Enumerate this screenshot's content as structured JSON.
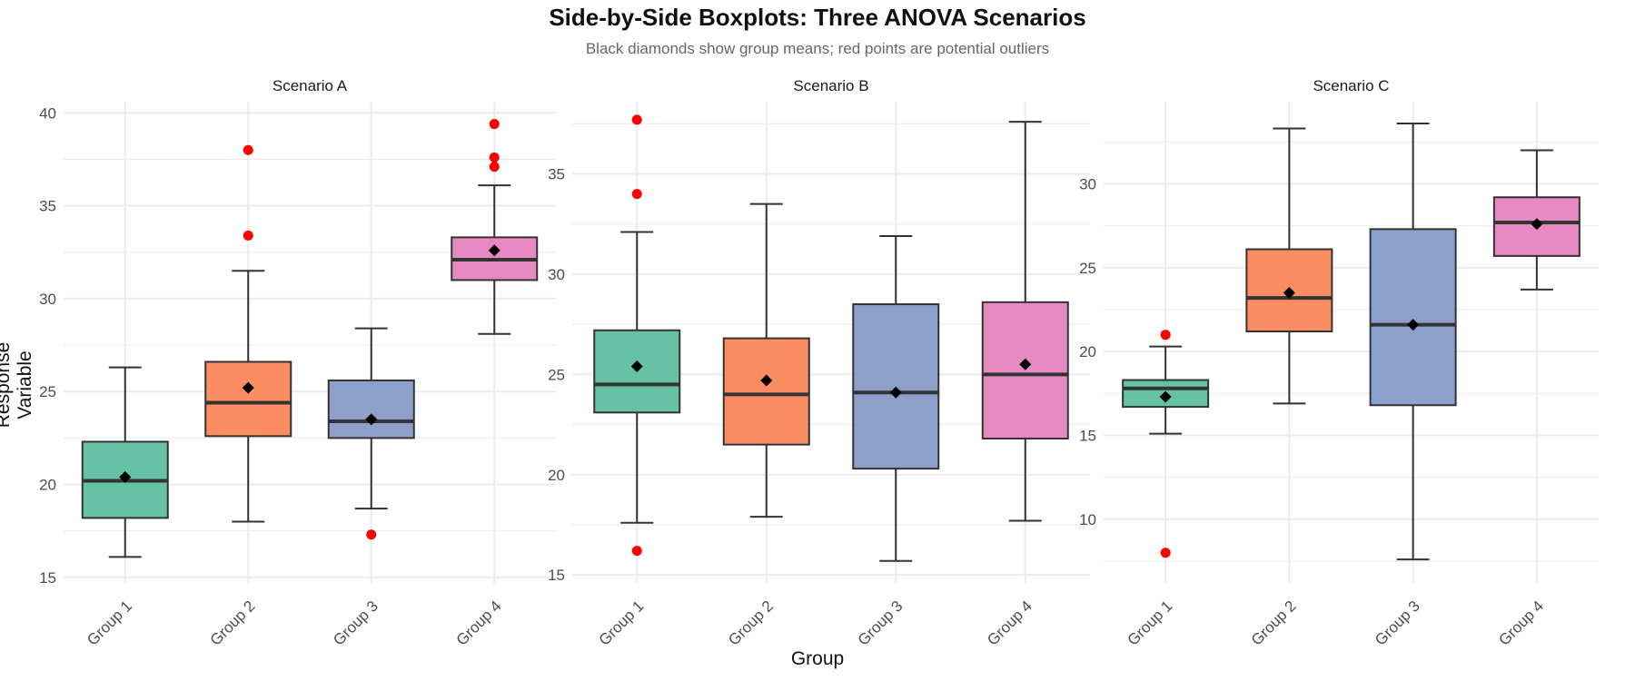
{
  "title": "Side-by-Side Boxplots: Three ANOVA Scenarios",
  "subtitle": "Black diamonds show group means; red points are potential outliers",
  "colors": {
    "Group 1": "#66c2a5",
    "Group 2": "#fc8d62",
    "Group 3": "#8da0cb",
    "Group 4": "#e78ac3",
    "outlier": "#ff0000",
    "mean": "#000000",
    "grid": "#ebebeb"
  },
  "chart_data": {
    "type": "boxplot",
    "xlabel": "Group",
    "ylabel": "Response Variable",
    "categories": [
      "Group 1",
      "Group 2",
      "Group 3",
      "Group 4"
    ],
    "grid": true,
    "panels": [
      {
        "name": "Scenario A",
        "ylim": [
          14.7,
          40.6
        ],
        "yticks": [
          15,
          20,
          25,
          30,
          35,
          40
        ],
        "groups": [
          {
            "name": "Group 1",
            "whisker_low": 16.1,
            "q1": 18.2,
            "median": 20.2,
            "q3": 22.3,
            "whisker_high": 26.3,
            "mean": 20.4,
            "outliers": []
          },
          {
            "name": "Group 2",
            "whisker_low": 18.0,
            "q1": 22.6,
            "median": 24.4,
            "q3": 26.6,
            "whisker_high": 31.5,
            "mean": 25.2,
            "outliers": [
              33.4,
              38.0
            ]
          },
          {
            "name": "Group 3",
            "whisker_low": 18.7,
            "q1": 22.5,
            "median": 23.4,
            "q3": 25.6,
            "whisker_high": 28.4,
            "mean": 23.5,
            "outliers": [
              17.3
            ]
          },
          {
            "name": "Group 4",
            "whisker_low": 28.1,
            "q1": 31.0,
            "median": 32.1,
            "q3": 33.3,
            "whisker_high": 36.1,
            "mean": 32.6,
            "outliers": [
              37.1,
              37.6,
              39.4
            ]
          }
        ]
      },
      {
        "name": "Scenario B",
        "ylim": [
          14.6,
          38.6
        ],
        "yticks": [
          15,
          20,
          25,
          30,
          35
        ],
        "groups": [
          {
            "name": "Group 1",
            "whisker_low": 17.6,
            "q1": 23.1,
            "median": 24.5,
            "q3": 27.2,
            "whisker_high": 32.1,
            "mean": 25.4,
            "outliers": [
              16.2,
              34.0,
              37.7
            ]
          },
          {
            "name": "Group 2",
            "whisker_low": 17.9,
            "q1": 21.5,
            "median": 24.0,
            "q3": 26.8,
            "whisker_high": 33.5,
            "mean": 24.7,
            "outliers": []
          },
          {
            "name": "Group 3",
            "whisker_low": 15.7,
            "q1": 20.3,
            "median": 24.1,
            "q3": 28.5,
            "whisker_high": 31.9,
            "mean": 24.1,
            "outliers": []
          },
          {
            "name": "Group 4",
            "whisker_low": 17.7,
            "q1": 21.8,
            "median": 25.0,
            "q3": 28.6,
            "whisker_high": 37.6,
            "mean": 25.5,
            "outliers": []
          }
        ]
      },
      {
        "name": "Scenario C",
        "ylim": [
          6.2,
          34.9
        ],
        "yticks": [
          10,
          15,
          20,
          25,
          30
        ],
        "groups": [
          {
            "name": "Group 1",
            "whisker_low": 15.1,
            "q1": 16.7,
            "median": 17.8,
            "q3": 18.3,
            "whisker_high": 20.3,
            "mean": 17.3,
            "outliers": [
              8.0,
              21.0
            ]
          },
          {
            "name": "Group 2",
            "whisker_low": 16.9,
            "q1": 21.2,
            "median": 23.2,
            "q3": 26.1,
            "whisker_high": 33.3,
            "mean": 23.5,
            "outliers": []
          },
          {
            "name": "Group 3",
            "whisker_low": 7.6,
            "q1": 16.8,
            "median": 21.6,
            "q3": 27.3,
            "whisker_high": 33.6,
            "mean": 21.6,
            "outliers": []
          },
          {
            "name": "Group 4",
            "whisker_low": 23.7,
            "q1": 25.7,
            "median": 27.7,
            "q3": 29.2,
            "whisker_high": 32.0,
            "mean": 27.6,
            "outliers": []
          }
        ]
      }
    ]
  }
}
